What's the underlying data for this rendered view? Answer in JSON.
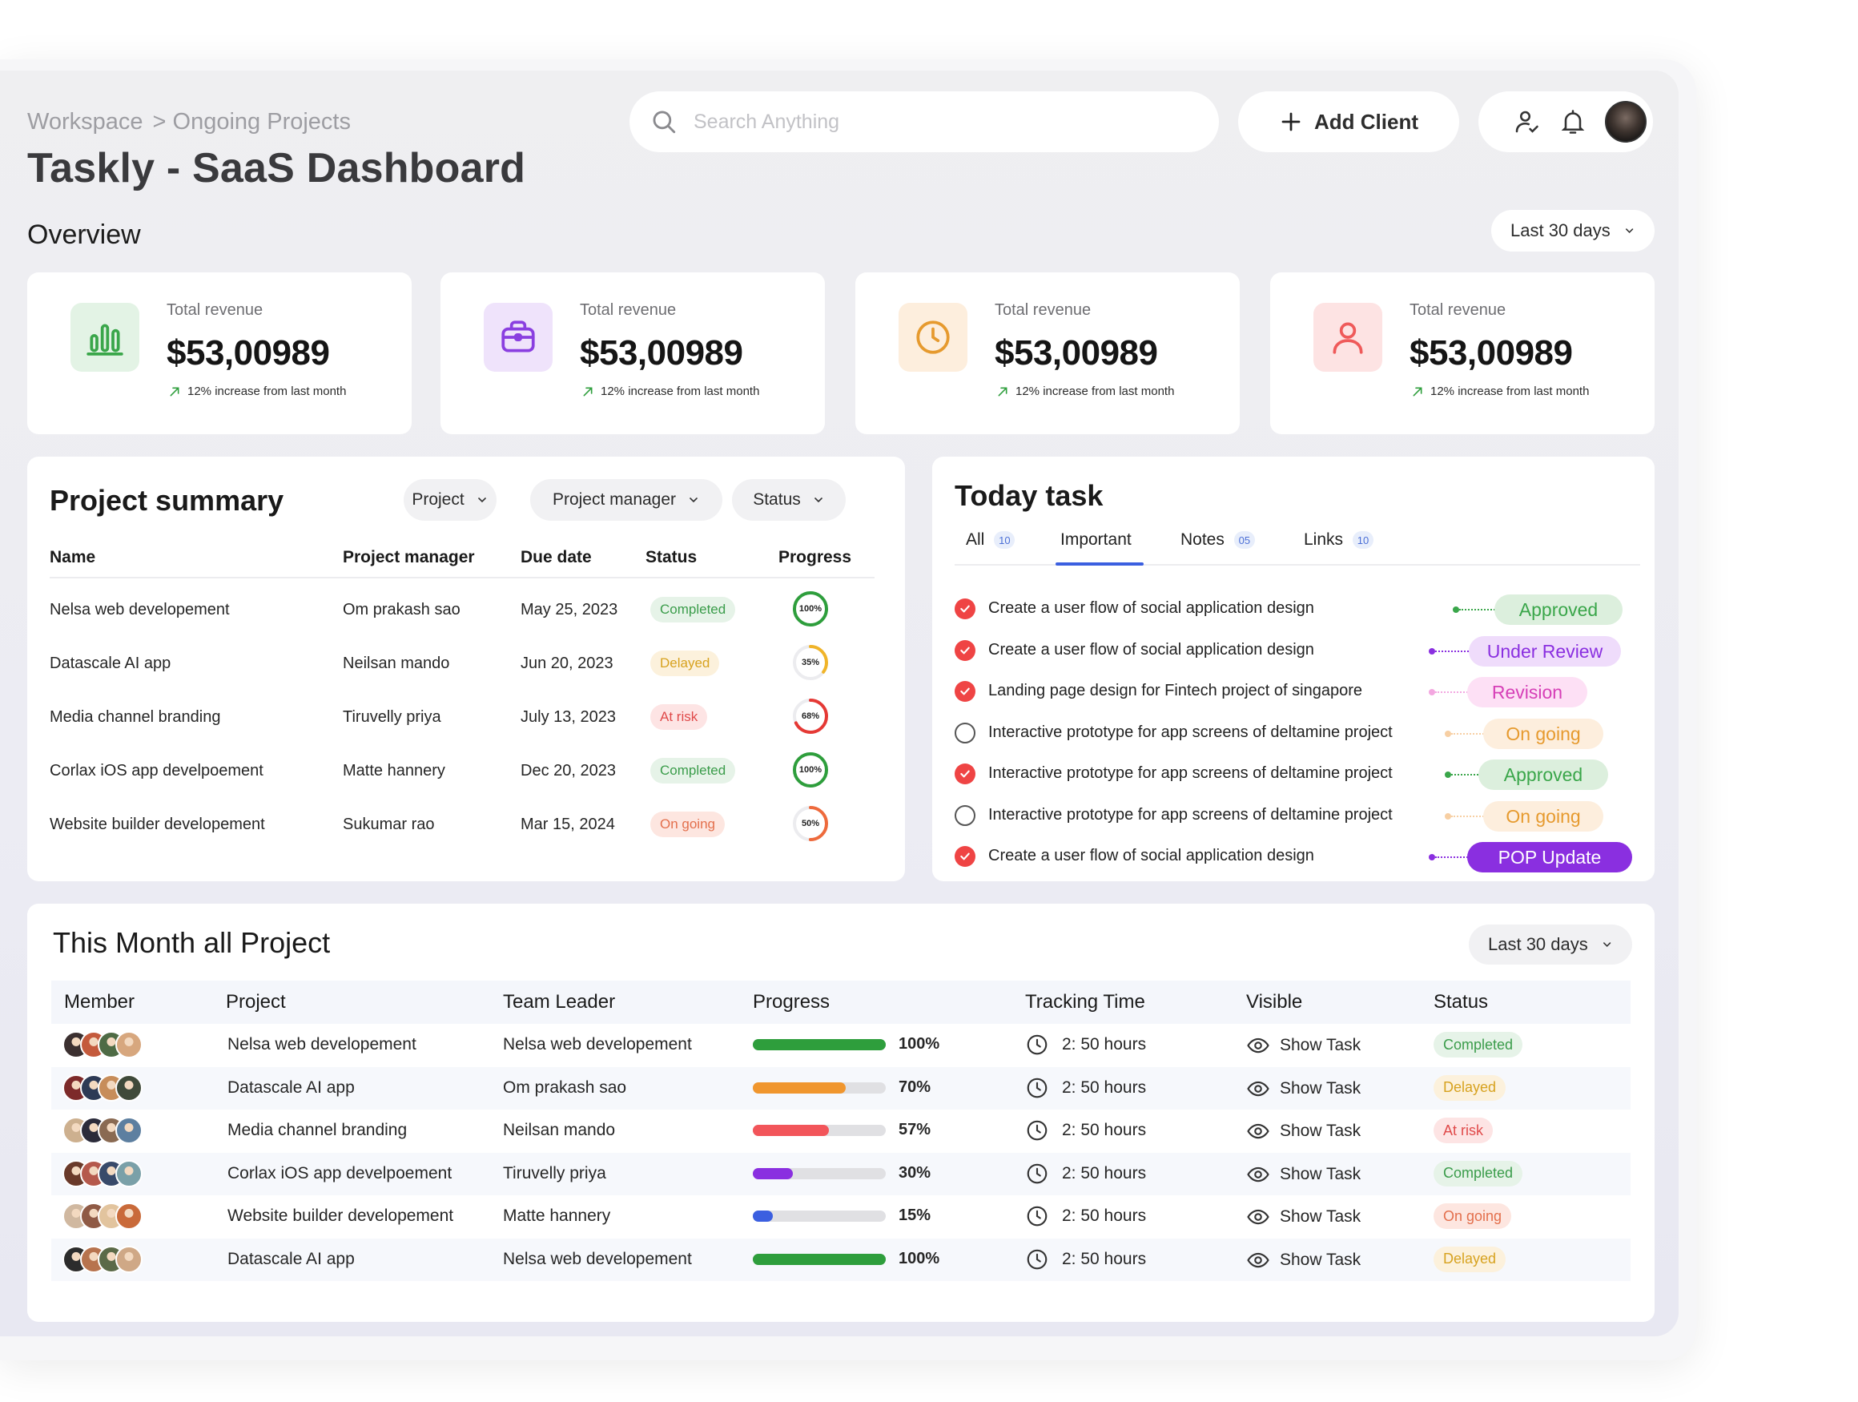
{
  "breadcrumb": {
    "root": "Workspace",
    "current": "> Ongoing Projects"
  },
  "page_title": "Taskly - SaaS Dashboard",
  "search": {
    "placeholder": "Search Anything"
  },
  "header": {
    "add_client_label": "Add Client"
  },
  "overview": {
    "title": "Overview",
    "range_label": "Last 30 days",
    "cards": [
      {
        "icon": "bar-chart-icon",
        "label": "Total revenue",
        "value": "$53,00989",
        "trend": "12% increase from last month",
        "accent": "#3aa64a",
        "bg": "#e3f3e5"
      },
      {
        "icon": "briefcase-icon",
        "label": "Total revenue",
        "value": "$53,00989",
        "trend": "12% increase from last month",
        "accent": "#8a3fe0",
        "bg": "#efe3fb"
      },
      {
        "icon": "clock-icon",
        "label": "Total revenue",
        "value": "$53,00989",
        "trend": "12% increase from last month",
        "accent": "#e69a2e",
        "bg": "#fdeedd"
      },
      {
        "icon": "user-icon",
        "label": "Total revenue",
        "value": "$53,00989",
        "trend": "12% increase from last month",
        "accent": "#ef5a5a",
        "bg": "#fde3e3"
      }
    ]
  },
  "project_summary": {
    "title": "Project summary",
    "filters": [
      "Project",
      "Project manager",
      "Status"
    ],
    "columns": [
      "Name",
      "Project manager",
      "Due date",
      "Status",
      "Progress"
    ],
    "rows": [
      {
        "name": "Nelsa web developement",
        "manager": "Om prakash sao",
        "due": "May 25, 2023",
        "status": "Completed",
        "status_kind": "completed",
        "progress": 100,
        "progress_label": "100%",
        "ring_color": "#2e9e3c"
      },
      {
        "name": "Datascale AI app",
        "manager": "Neilsan mando",
        "due": "Jun 20, 2023",
        "status": "Delayed",
        "status_kind": "delayed",
        "progress": 35,
        "progress_label": "35%",
        "ring_color": "#f0b429"
      },
      {
        "name": "Media channel branding",
        "manager": "Tiruvelly priya",
        "due": "July 13, 2023",
        "status": "At risk",
        "status_kind": "risk",
        "progress": 68,
        "progress_label": "68%",
        "ring_color": "#e53935"
      },
      {
        "name": "Corlax iOS app develpoement",
        "manager": "Matte hannery",
        "due": "Dec 20, 2023",
        "status": "Completed",
        "status_kind": "completed",
        "progress": 100,
        "progress_label": "100%",
        "ring_color": "#2e9e3c"
      },
      {
        "name": "Website builder developement",
        "manager": "Sukumar rao",
        "due": "Mar 15, 2024",
        "status": "On going",
        "status_kind": "ongoing",
        "progress": 50,
        "progress_label": "50%",
        "ring_color": "#ee6a3c"
      }
    ]
  },
  "today_task": {
    "title": "Today task",
    "tabs": [
      {
        "label": "All",
        "count": "10"
      },
      {
        "label": "Important",
        "count": ""
      },
      {
        "label": "Notes",
        "count": "05"
      },
      {
        "label": "Links",
        "count": "10"
      }
    ],
    "tasks": [
      {
        "text": "Create a user flow of social application design",
        "done": true,
        "tag": "Approved",
        "tag_bg": "#dcefdd",
        "tag_color": "#3aa64a",
        "line_color": "#3aa64a"
      },
      {
        "text": "Create a user flow of social application design",
        "done": true,
        "tag": "Under Review",
        "tag_bg": "#efdcfb",
        "tag_color": "#8a2fe0",
        "line_color": "#8a2fe0"
      },
      {
        "text": "Landing page design for Fintech project of singapore",
        "done": true,
        "tag": "Revision",
        "tag_bg": "#fde0f5",
        "tag_color": "#d63fb7",
        "line_color": "#f3a7e0"
      },
      {
        "text": "Interactive prototype for app screens of deltamine project",
        "done": false,
        "tag": "On going",
        "tag_bg": "#fdeedd",
        "tag_color": "#e69a2e",
        "line_color": "#f7cfa3"
      },
      {
        "text": "Interactive prototype for app screens of deltamine project",
        "done": true,
        "tag": "Approved",
        "tag_bg": "#dcefdd",
        "tag_color": "#3aa64a",
        "line_color": "#3aa64a"
      },
      {
        "text": "Interactive prototype for app screens of deltamine project",
        "done": false,
        "tag": "On going",
        "tag_bg": "#fdeedd",
        "tag_color": "#e69a2e",
        "line_color": "#f7cfa3"
      },
      {
        "text": "Create a user flow of social application design",
        "done": true,
        "tag": "POP Update",
        "tag_bg": "#8a2fe0",
        "tag_color": "#ffffff",
        "line_color": "#8a2fe0"
      }
    ]
  },
  "this_month": {
    "title": "This Month all Project",
    "range_label": "Last 30 days",
    "columns": [
      "Member",
      "Project",
      "Team Leader",
      "Progress",
      "Tracking Time",
      "Visible",
      "Status"
    ],
    "rows": [
      {
        "project": "Nelsa web developement",
        "leader": "Nelsa web developement",
        "progress": 100,
        "progress_label": "100%",
        "bar_color": "#2e9e3c",
        "time": "2: 50 hours",
        "visible": "Show Task",
        "status": "Completed",
        "status_kind": "completed"
      },
      {
        "project": "Datascale AI app",
        "leader": "Om prakash sao",
        "progress": 70,
        "progress_label": "70%",
        "bar_color": "#f0962e",
        "time": "2: 50 hours",
        "visible": "Show Task",
        "status": "Delayed",
        "status_kind": "delayed"
      },
      {
        "project": "Media channel branding",
        "leader": "Neilsan mando",
        "progress": 57,
        "progress_label": "57%",
        "bar_color": "#f2555a",
        "time": "2: 50 hours",
        "visible": "Show Task",
        "status": "At risk",
        "status_kind": "risk"
      },
      {
        "project": "Corlax iOS app develpoement",
        "leader": "Tiruvelly priya",
        "progress": 30,
        "progress_label": "30%",
        "bar_color": "#8a2fe0",
        "time": "2: 50 hours",
        "visible": "Show Task",
        "status": "Completed",
        "status_kind": "completed"
      },
      {
        "project": "Website builder developement",
        "leader": "Matte hannery",
        "progress": 15,
        "progress_label": "15%",
        "bar_color": "#3b5fe0",
        "time": "2: 50 hours",
        "visible": "Show Task",
        "status": "On going",
        "status_kind": "ongoing"
      },
      {
        "project": "Datascale AI app",
        "leader": "Nelsa web developement",
        "progress": 100,
        "progress_label": "100%",
        "bar_color": "#2e9e3c",
        "time": "2: 50 hours",
        "visible": "Show Task",
        "status": "Delayed",
        "status_kind": "delayed"
      }
    ]
  }
}
